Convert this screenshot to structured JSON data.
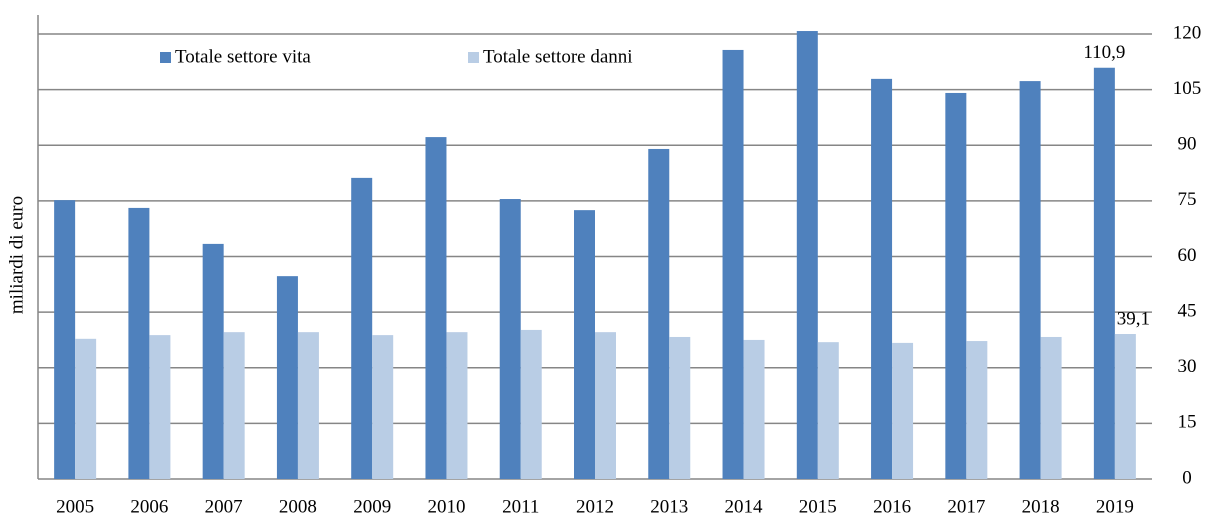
{
  "chart_data": {
    "type": "bar",
    "y_label": "miliardi di euro",
    "categories": [
      "2005",
      "2006",
      "2007",
      "2008",
      "2009",
      "2010",
      "2011",
      "2012",
      "2013",
      "2014",
      "2015",
      "2016",
      "2017",
      "2018",
      "2019"
    ],
    "series": [
      {
        "name": "Totale settore vita",
        "color": "#4f81bd",
        "values": [
          75.2,
          73.1,
          63.4,
          54.7,
          81.2,
          92.2,
          75.5,
          72.5,
          89.0,
          115.7,
          120.8,
          107.9,
          104.1,
          107.3,
          110.9
        ],
        "value_labels": [
          null,
          null,
          null,
          null,
          null,
          null,
          null,
          null,
          null,
          null,
          null,
          null,
          null,
          null,
          "110,9"
        ]
      },
      {
        "name": "Totale settore danni",
        "color": "#b9cde5",
        "values": [
          37.8,
          38.8,
          39.6,
          39.6,
          38.8,
          39.6,
          40.2,
          39.6,
          38.3,
          37.5,
          36.9,
          36.7,
          37.2,
          38.3,
          39.1
        ],
        "value_labels": [
          null,
          null,
          null,
          null,
          null,
          null,
          null,
          null,
          null,
          null,
          null,
          null,
          null,
          null,
          "39,1"
        ]
      }
    ],
    "ylim": [
      0,
      120
    ],
    "yticks": [
      0,
      15,
      30,
      45,
      60,
      75,
      90,
      105,
      120
    ],
    "y_axis_side": "right",
    "grid": true,
    "legend": "upper left"
  }
}
